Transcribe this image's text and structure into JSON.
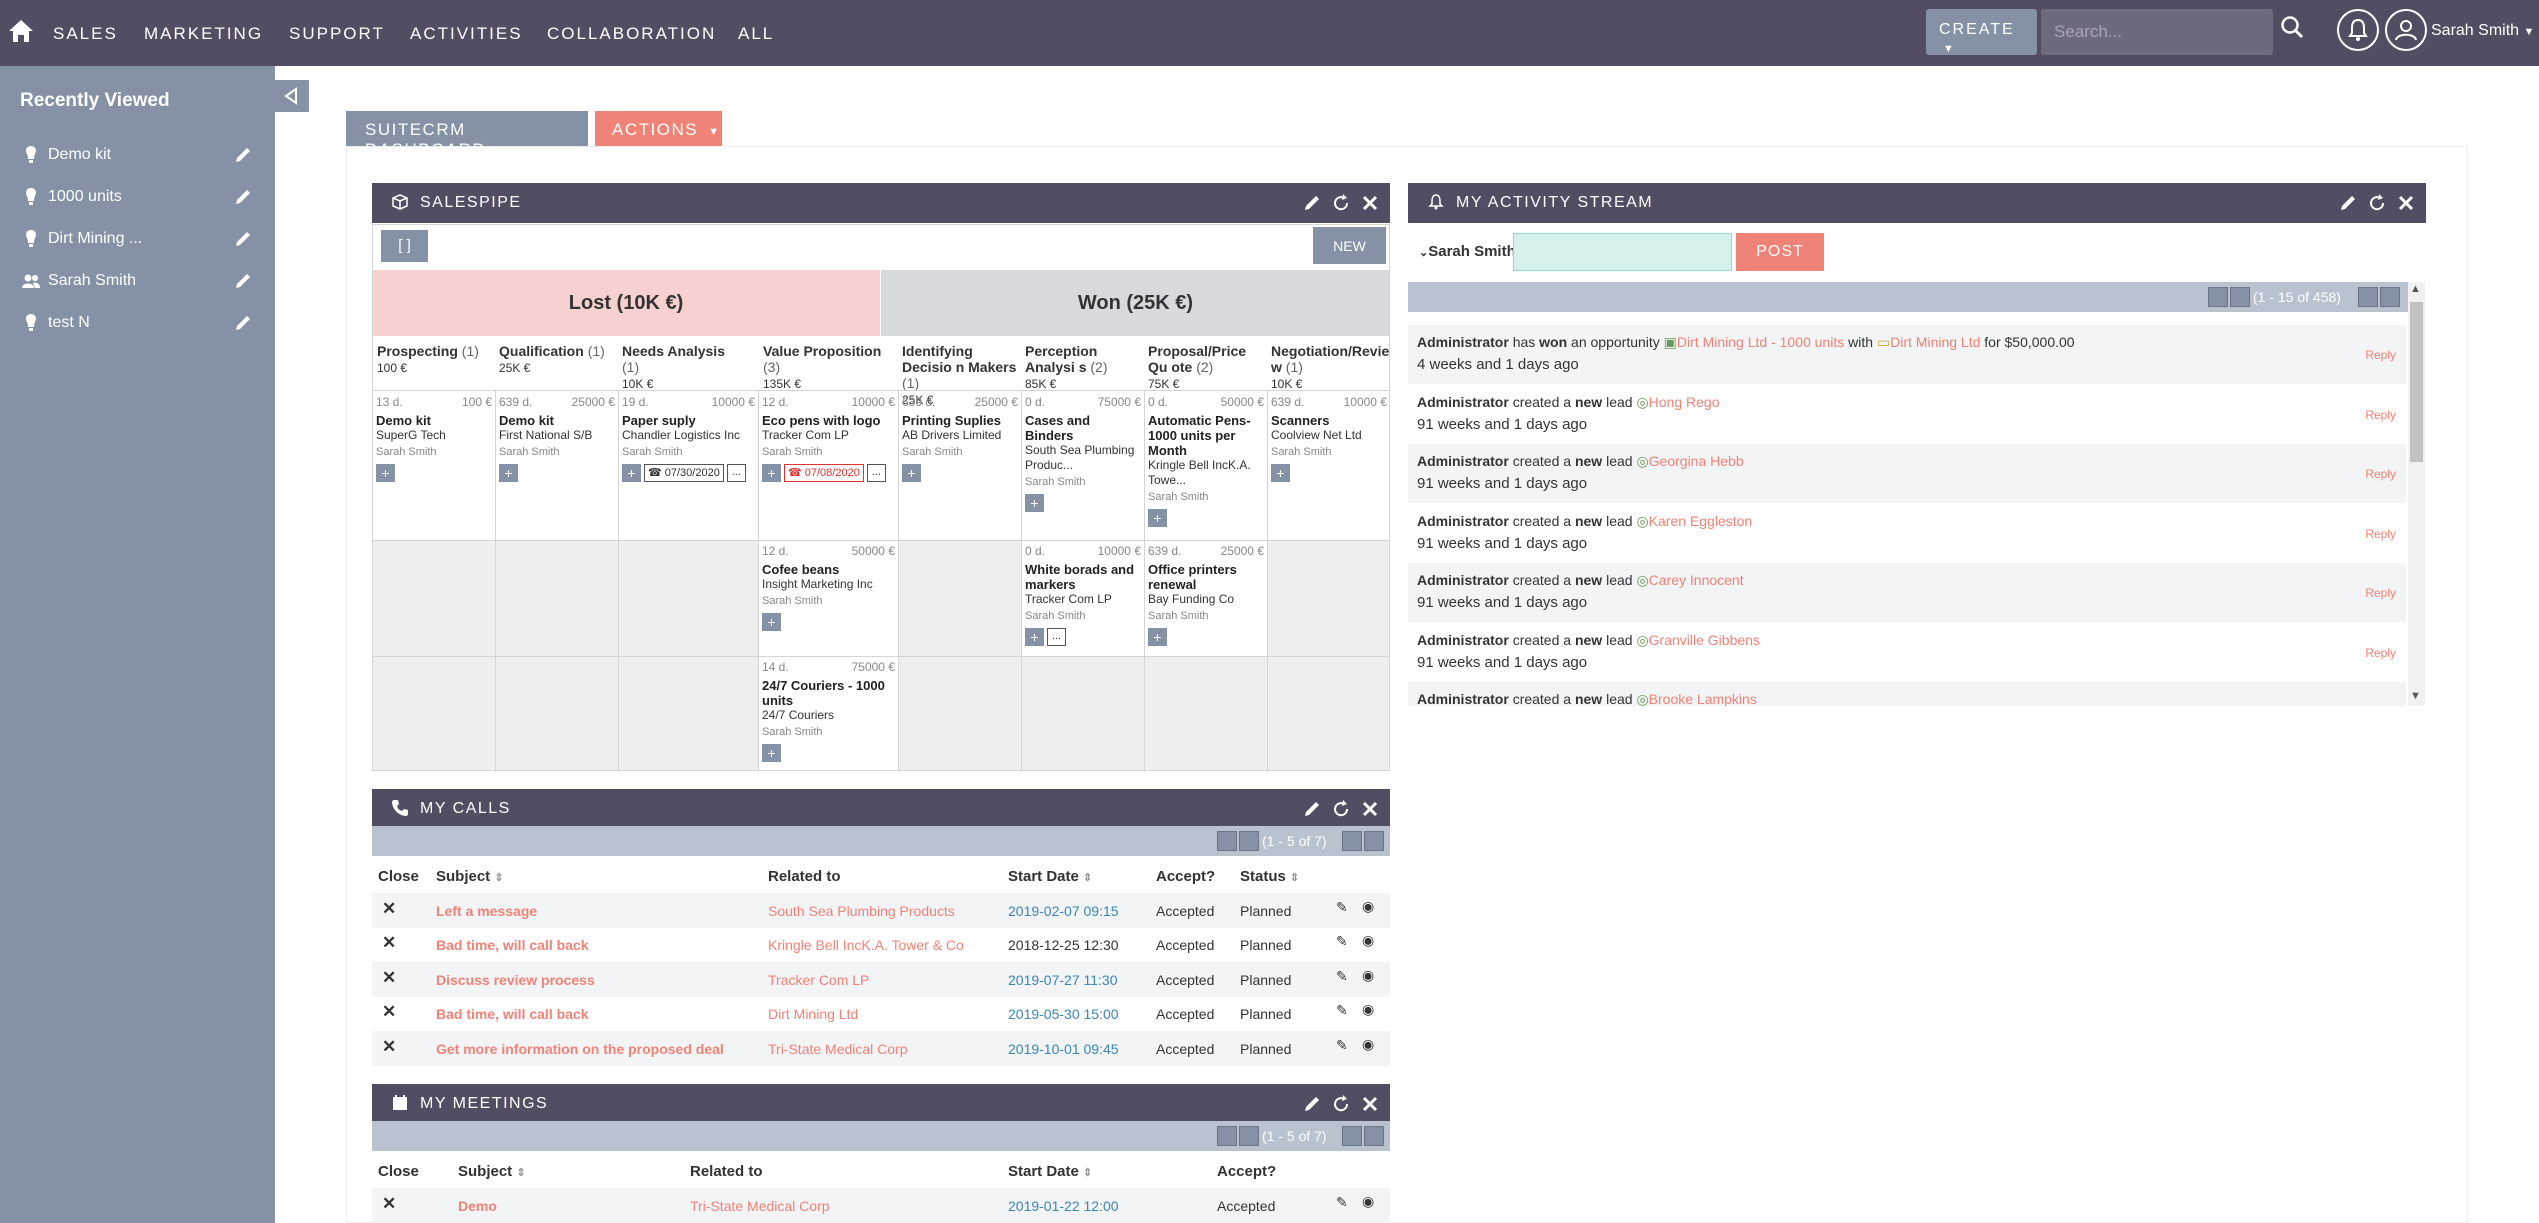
{
  "nav": {
    "items": [
      "SALES",
      "MARKETING",
      "SUPPORT",
      "ACTIVITIES",
      "COLLABORATION",
      "ALL"
    ],
    "create_label": "CREATE",
    "search_placeholder": "Search...",
    "user_name": "Sarah Smith"
  },
  "sidebar": {
    "title": "Recently Viewed",
    "items": [
      {
        "label": "Demo kit",
        "icon": "bulb-icon"
      },
      {
        "label": "1000 units",
        "icon": "bulb-icon"
      },
      {
        "label": "Dirt Mining ...",
        "icon": "bulb-icon"
      },
      {
        "label": "Sarah Smith",
        "icon": "users-icon"
      },
      {
        "label": "test N",
        "icon": "bulb-icon"
      }
    ]
  },
  "tabs": {
    "dashboard": "SUITECRM DASHBOARD",
    "actions": "ACTIONS"
  },
  "salespipe": {
    "title": "SALESPIPE",
    "brackets": "[ ]",
    "new_label": "NEW",
    "lost": "Lost (10K €)",
    "won": "Won (25K €)",
    "stages": [
      {
        "name": "Prospecting",
        "count": "(1)",
        "amount": "100 €"
      },
      {
        "name": "Qualification",
        "count": "(1)",
        "amount": "25K €"
      },
      {
        "name": "Needs Analysis",
        "count": "(1)",
        "amount": "10K €"
      },
      {
        "name": "Value Proposition",
        "count": "(3)",
        "amount": "135K €"
      },
      {
        "name": "Identifying Decisio n Makers",
        "count": "(1)",
        "amount": "25K €"
      },
      {
        "name": "Perception Analysi s",
        "count": "(2)",
        "amount": "85K €"
      },
      {
        "name": "Proposal/Price Qu ote",
        "count": "(2)",
        "amount": "75K €"
      },
      {
        "name": "Negotiation/Revie w",
        "count": "(1)",
        "amount": "10K €"
      }
    ],
    "cards": [
      {
        "days": "13 d.",
        "amount": "100 €",
        "name": "Demo kit",
        "account": "SuperG Tech",
        "user": "Sarah Smith"
      },
      {
        "days": "639 d.",
        "amount": "25000 €",
        "name": "Demo kit",
        "account": "First National S/B",
        "user": "Sarah Smith"
      },
      {
        "days": "19 d.",
        "amount": "10000 €",
        "name": "Paper suply",
        "account": "Chandler Logistics Inc",
        "user": "Sarah Smith",
        "date": "07/30/2020"
      },
      {
        "days": "12 d.",
        "amount": "10000 €",
        "name": "Eco pens with logo",
        "account": "Tracker Com LP",
        "user": "Sarah Smith",
        "date": "07/08/2020"
      },
      {
        "days": "639 d.",
        "amount": "25000 €",
        "name": "Printing Suplies",
        "account": "AB Drivers Limited",
        "user": "Sarah Smith"
      },
      {
        "days": "0 d.",
        "amount": "75000 €",
        "name": "Cases and Binders",
        "account": "South Sea Plumbing Produc...",
        "user": "Sarah Smith"
      },
      {
        "days": "0 d.",
        "amount": "50000 €",
        "name": "Automatic Pens-1000 units per Month",
        "account": "Kringle Bell IncK.A. Towe...",
        "user": "Sarah Smith"
      },
      {
        "days": "639 d.",
        "amount": "10000 €",
        "name": "Scanners",
        "account": "Coolview Net Ltd",
        "user": "Sarah Smith"
      },
      {
        "days": "12 d.",
        "amount": "50000 €",
        "name": "Cofee beans",
        "account": "Insight Marketing Inc",
        "user": "Sarah Smith"
      },
      {
        "days": "0 d.",
        "amount": "10000 €",
        "name": "White borads and markers",
        "account": "Tracker Com LP",
        "user": "Sarah Smith"
      },
      {
        "days": "639 d.",
        "amount": "25000 €",
        "name": "Office printers renewal",
        "account": "Bay Funding Co",
        "user": "Sarah Smith"
      },
      {
        "days": "14 d.",
        "amount": "75000 €",
        "name": "24/7 Couriers - 1000 units",
        "account": "24/7 Couriers",
        "user": "Sarah Smith"
      }
    ]
  },
  "calls": {
    "title": "MY CALLS",
    "pager": "(1 - 5 of 7)",
    "headers": [
      "Close",
      "Subject",
      "Related to",
      "Start Date",
      "Accept?",
      "Status"
    ],
    "rows": [
      [
        "Left a message",
        "South Sea Plumbing Products",
        "2019-02-07 09:15",
        "Accepted",
        "Planned"
      ],
      [
        "Bad time, will call back",
        "Kringle Bell IncK.A. Tower & Co",
        "2018-12-25 12:30",
        "Accepted",
        "Planned"
      ],
      [
        "Discuss review process",
        "Tracker Com LP",
        "2019-07-27 11:30",
        "Accepted",
        "Planned"
      ],
      [
        "Bad time, will call back",
        "Dirt Mining Ltd",
        "2019-05-30 15:00",
        "Accepted",
        "Planned"
      ],
      [
        "Get more information on the proposed deal",
        "Tri-State Medical Corp",
        "2019-10-01 09:45",
        "Accepted",
        "Planned"
      ]
    ]
  },
  "meetings": {
    "title": "MY MEETINGS",
    "pager": "(1 - 5 of 7)",
    "headers": [
      "Close",
      "Subject",
      "Related to",
      "Start Date",
      "Accept?"
    ],
    "rows": [
      [
        "Demo",
        "Tri-State Medical Corp",
        "2019-01-22 12:00",
        "Accepted"
      ]
    ]
  },
  "activity": {
    "title": "MY ACTIVITY STREAM",
    "user": "Sarah Smith",
    "post_label": "POST",
    "pager": "(1 - 15 of 458)",
    "reply": "Reply",
    "items": [
      {
        "actor": "Administrator",
        "text1": "has",
        "verb": "won",
        "text2": "an opportunity",
        "target": "Dirt Mining Ltd - 1000 units",
        "with": "with",
        "target2": "Dirt Mining Ltd",
        "tail": "for $50,000.00",
        "when": "4 weeks and 1 days ago"
      },
      {
        "actor": "Administrator",
        "text1": "created a",
        "verb": "new",
        "text2": "lead",
        "target": "Hong Rego",
        "when": "91 weeks and 1 days ago"
      },
      {
        "actor": "Administrator",
        "text1": "created a",
        "verb": "new",
        "text2": "lead",
        "target": "Georgina Hebb",
        "when": "91 weeks and 1 days ago"
      },
      {
        "actor": "Administrator",
        "text1": "created a",
        "verb": "new",
        "text2": "lead",
        "target": "Karen Eggleston",
        "when": "91 weeks and 1 days ago"
      },
      {
        "actor": "Administrator",
        "text1": "created a",
        "verb": "new",
        "text2": "lead",
        "target": "Carey Innocent",
        "when": "91 weeks and 1 days ago"
      },
      {
        "actor": "Administrator",
        "text1": "created a",
        "verb": "new",
        "text2": "lead",
        "target": "Granville Gibbens",
        "when": "91 weeks and 1 days ago"
      },
      {
        "actor": "Administrator",
        "text1": "created a",
        "verb": "new",
        "text2": "lead",
        "target": "Brooke Lampkins",
        "when": ""
      }
    ]
  },
  "colors": {
    "nav_bg": "#534d64",
    "sidebar_bg": "#8592a6",
    "accent": "#f08377",
    "lost": "#f6d1cf",
    "won": "#d8d9dd"
  }
}
